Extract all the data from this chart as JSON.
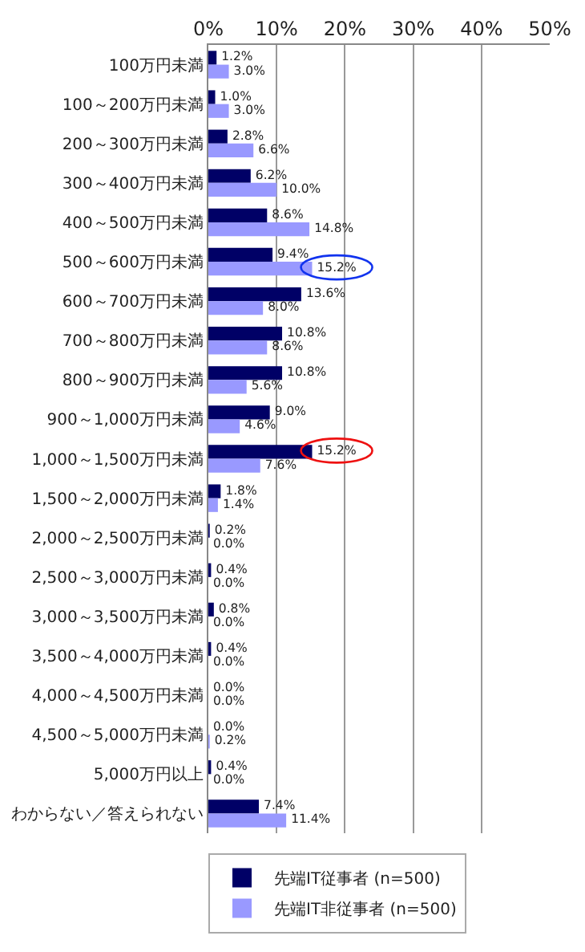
{
  "chart_data": {
    "type": "bar",
    "orientation": "horizontal",
    "categories": [
      "100万円未満",
      "100～200万円未満",
      "200～300万円未満",
      "300～400万円未満",
      "400～500万円未満",
      "500～600万円未満",
      "600～700万円未満",
      "700～800万円未満",
      "800～900万円未満",
      "900～1,000万円未満",
      "1,000～1,500万円未満",
      "1,500～2,000万円未満",
      "2,000～2,500万円未満",
      "2,500～3,000万円未満",
      "3,000～3,500万円未満",
      "3,500～4,000万円未満",
      "4,000～4,500万円未満",
      "4,500～5,000万円未満",
      "5,000万円以上",
      "わからない／答えられない"
    ],
    "series": [
      {
        "name": "先端IT従事者 (n=500)",
        "color": "#000066",
        "values": [
          1.2,
          1.0,
          2.8,
          6.2,
          8.6,
          9.4,
          13.6,
          10.8,
          10.8,
          9.0,
          15.2,
          1.8,
          0.2,
          0.4,
          0.8,
          0.4,
          0.0,
          0.0,
          0.4,
          7.4
        ],
        "value_labels": [
          "1.2%",
          "1.0%",
          "2.8%",
          "6.2%",
          "8.6%",
          "9.4%",
          "13.6%",
          "10.8%",
          "10.8%",
          "9.0%",
          "15.2%",
          "1.8%",
          "0.2%",
          "0.4%",
          "0.8%",
          "0.4%",
          "0.0%",
          "0.0%",
          "0.4%",
          "7.4%"
        ]
      },
      {
        "name": "先端IT非従事者 (n=500)",
        "color": "#9999ff",
        "values": [
          3.0,
          3.0,
          6.6,
          10.0,
          14.8,
          15.2,
          8.0,
          8.6,
          5.6,
          4.6,
          7.6,
          1.4,
          0.0,
          0.0,
          0.0,
          0.0,
          0.0,
          0.2,
          0.0,
          11.4
        ],
        "value_labels": [
          "3.0%",
          "3.0%",
          "6.6%",
          "10.0%",
          "14.8%",
          "15.2%",
          "8.0%",
          "8.6%",
          "5.6%",
          "4.6%",
          "7.6%",
          "1.4%",
          "0.0%",
          "0.0%",
          "0.0%",
          "0.0%",
          "0.0%",
          "0.2%",
          "0.0%",
          "11.4%"
        ]
      }
    ],
    "xlim": [
      0,
      50
    ],
    "xticks": [
      {
        "value": 0,
        "label": "0%"
      },
      {
        "value": 10,
        "label": "10%"
      },
      {
        "value": 20,
        "label": "20%"
      },
      {
        "value": 30,
        "label": "30%"
      },
      {
        "value": 40,
        "label": "40%"
      },
      {
        "value": 50,
        "label": "50%"
      }
    ],
    "grid": "x",
    "legend": "bottom"
  }
}
